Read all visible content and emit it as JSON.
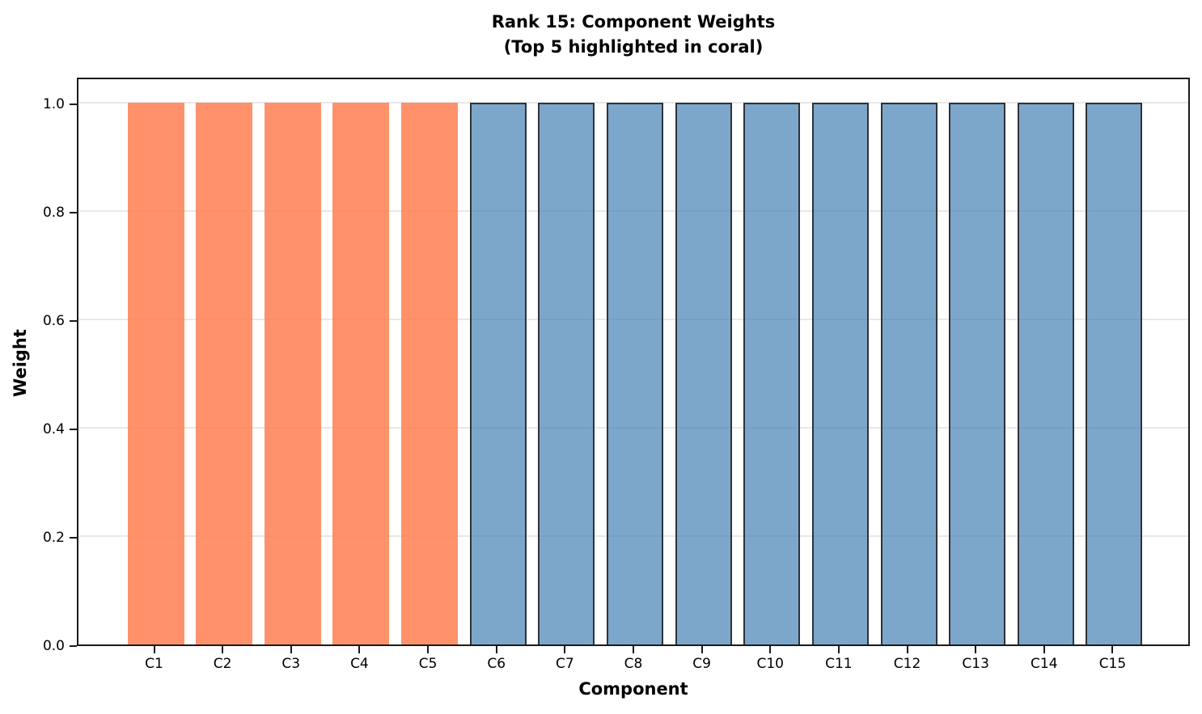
{
  "chart_data": {
    "type": "bar",
    "title_line1": "Rank 15: Component Weights",
    "title_line2": "(Top 5 highlighted in coral)",
    "title": "Rank 15: Component Weights\n(Top 5 highlighted in coral)",
    "xlabel": "Component",
    "ylabel": "Weight",
    "categories": [
      "C1",
      "C2",
      "C3",
      "C4",
      "C5",
      "C6",
      "C7",
      "C8",
      "C9",
      "C10",
      "C11",
      "C12",
      "C13",
      "C14",
      "C15"
    ],
    "values": [
      1.0,
      1.0,
      1.0,
      1.0,
      1.0,
      1.0,
      1.0,
      1.0,
      1.0,
      1.0,
      1.0,
      1.0,
      1.0,
      1.0,
      1.0
    ],
    "highlighted_count": 5,
    "highlighted_categories": [
      "C1",
      "C2",
      "C3",
      "C4",
      "C5"
    ],
    "ytick_labels": [
      "0.0",
      "0.2",
      "0.4",
      "0.6",
      "0.8",
      "1.0"
    ],
    "ytick_values": [
      0.0,
      0.2,
      0.4,
      0.6,
      0.8,
      1.0
    ],
    "ylim": [
      0,
      1.05
    ],
    "grid": "horizontal",
    "legend": "none",
    "colors": {
      "highlight_fill": "rgba(255,127,80,0.85)",
      "highlight_base": "#FF7F50",
      "default_fill": "rgba(70,130,180,0.70)",
      "default_base": "#4682B4",
      "default_edge": "#2d333a",
      "grid_color": "#e8e8e8",
      "axis_color": "#1a1a1a",
      "text_color": "#000000"
    }
  }
}
